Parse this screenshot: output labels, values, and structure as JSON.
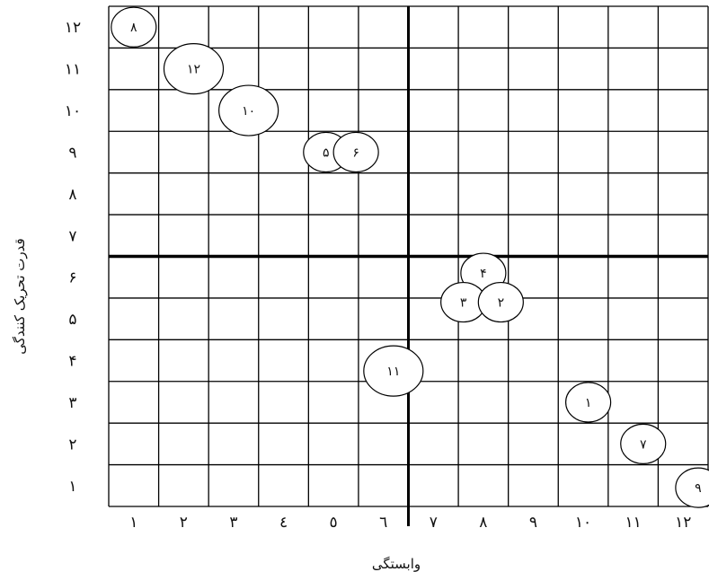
{
  "chart_data": {
    "type": "scatter",
    "xlabel": "وابستگی",
    "ylabel": "قدرت تحریک کنندگی",
    "xlim": [
      0.5,
      12.5
    ],
    "ylim": [
      0.5,
      12.5
    ],
    "x_ticks": [
      "۱",
      "۲",
      "۳",
      "٤",
      "٥",
      "٦",
      "٧",
      "٨",
      "٩",
      "١٠",
      "١١",
      "١٢"
    ],
    "y_ticks": [
      "۱",
      "۲",
      "۳",
      "۴",
      "۵",
      "۶",
      "۷",
      "۸",
      "۹",
      "۱۰",
      "۱۱",
      "۱۲"
    ],
    "grid": true,
    "divider": {
      "x": 6.5,
      "y": 6.5
    },
    "points": [
      {
        "label": "۸",
        "x": 1.0,
        "y": 12.0
      },
      {
        "label": "۱۲",
        "x": 2.2,
        "y": 11.0
      },
      {
        "label": "۱۰",
        "x": 3.3,
        "y": 10.0
      },
      {
        "label": "۵",
        "x": 4.85,
        "y": 9.0
      },
      {
        "label": "۶",
        "x": 5.45,
        "y": 9.0
      },
      {
        "label": "۴",
        "x": 8.0,
        "y": 6.1
      },
      {
        "label": "۳",
        "x": 7.6,
        "y": 5.4
      },
      {
        "label": "۲",
        "x": 8.35,
        "y": 5.4
      },
      {
        "label": "۱۱",
        "x": 6.2,
        "y": 3.75
      },
      {
        "label": "۱",
        "x": 10.1,
        "y": 3.0
      },
      {
        "label": "۷",
        "x": 11.2,
        "y": 2.0
      },
      {
        "label": "۹",
        "x": 12.3,
        "y": 0.95
      }
    ]
  }
}
